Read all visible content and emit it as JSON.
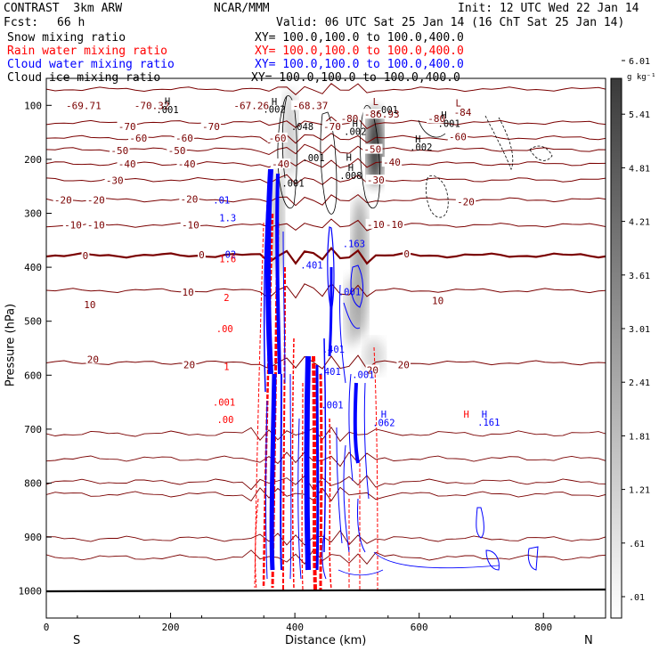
{
  "header": {
    "project": "CONTRAST  3km ARW",
    "center": "NCAR/MMM",
    "init": "Init: 12 UTC Wed 22 Jan 14",
    "fcst_label": "Fcst:",
    "fcst_value": "66 h",
    "valid": "Valid: 06 UTC Sat 25 Jan 14 (16 ChT Sat 25 Jan 14)"
  },
  "legend": [
    {
      "name": "Snow mixing ratio",
      "xy": "XY= 100.0,100.0 to 100.0,400.0",
      "color": "#000000"
    },
    {
      "name": "Rain water mixing ratio",
      "xy": "XY= 100.0,100.0 to 100.0,400.0",
      "color": "#ff0000"
    },
    {
      "name": "Cloud water mixing ratio",
      "xy": "XY= 100.0,100.0 to 100.0,400.0",
      "color": "#0000ff"
    },
    {
      "name": "Cloud ice mixing ratio",
      "xy": "XY= 100.0,100.0 to 100.0,400.0",
      "color": "#000000"
    }
  ],
  "colorbar": {
    "unit": "g kg⁻¹",
    "labels": [
      ".01",
      ".61",
      "1.21",
      "1.81",
      "2.41",
      "3.01",
      "3.61",
      "4.21",
      "4.81",
      "5.41",
      "6.01"
    ]
  },
  "chart_data": {
    "type": "contour cross-section",
    "ylabel": "Pressure (hPa)",
    "xlabel": "Distance (km)",
    "x_ticks": [
      0,
      200,
      400,
      600,
      800
    ],
    "x_tick_labels": [
      "0",
      "200",
      "400",
      "600",
      "800"
    ],
    "y_ticks": [
      100,
      200,
      300,
      400,
      500,
      600,
      700,
      800,
      900,
      1000
    ],
    "y_tick_labels": [
      "100",
      "200",
      "300",
      "400",
      "500",
      "600",
      "700",
      "800",
      "900",
      "1000"
    ],
    "xlim": [
      0,
      900
    ],
    "ylim": [
      1050,
      50
    ],
    "end_labels": {
      "left": "S",
      "right": "N"
    },
    "temperature_contours": [
      {
        "value": -80,
        "p": 70
      },
      {
        "value": -70,
        "p": 132
      },
      {
        "value": -60,
        "p": 160
      },
      {
        "value": -50,
        "p": 182
      },
      {
        "value": -40,
        "p": 208
      },
      {
        "value": -30,
        "p": 238
      },
      {
        "value": -20,
        "p": 275
      },
      {
        "value": -10,
        "p": 322
      },
      {
        "value": 0,
        "p": 378
      },
      {
        "value": 10,
        "p": 443
      },
      {
        "value": 20,
        "p": 577
      }
    ],
    "temperature_labels": [
      {
        "text": "-69.71",
        "x": 60,
        "p": 102
      },
      {
        "text": "-70.32",
        "x": 170,
        "p": 102
      },
      {
        "text": "-67.26",
        "x": 330,
        "p": 102
      },
      {
        "text": "-68.37",
        "x": 425,
        "p": 102
      },
      {
        "text": "-86.93",
        "x": 540,
        "p": 118
      },
      {
        "text": "-84",
        "x": 670,
        "p": 114
      },
      {
        "text": "-80",
        "x": 488,
        "p": 126
      },
      {
        "text": "-80",
        "x": 628,
        "p": 126
      },
      {
        "text": "-70",
        "x": 130,
        "p": 141
      },
      {
        "text": "-70",
        "x": 265,
        "p": 141
      },
      {
        "text": "-70",
        "x": 460,
        "p": 141
      },
      {
        "text": "-60",
        "x": 148,
        "p": 162
      },
      {
        "text": "-60",
        "x": 222,
        "p": 162
      },
      {
        "text": "-60",
        "x": 372,
        "p": 162
      },
      {
        "text": "-60",
        "x": 662,
        "p": 160
      },
      {
        "text": "-50",
        "x": 118,
        "p": 185
      },
      {
        "text": "-50",
        "x": 210,
        "p": 185
      },
      {
        "text": "-50",
        "x": 525,
        "p": 183
      },
      {
        "text": "-40",
        "x": 130,
        "p": 210
      },
      {
        "text": "-40",
        "x": 226,
        "p": 210
      },
      {
        "text": "-40",
        "x": 377,
        "p": 210
      },
      {
        "text": "-40",
        "x": 556,
        "p": 207
      },
      {
        "text": "-30",
        "x": 110,
        "p": 241
      },
      {
        "text": "-30",
        "x": 530,
        "p": 240
      },
      {
        "text": "-20",
        "x": 27,
        "p": 277
      },
      {
        "text": "-20",
        "x": 80,
        "p": 277
      },
      {
        "text": "-20",
        "x": 230,
        "p": 275
      },
      {
        "text": "-20",
        "x": 675,
        "p": 280
      },
      {
        "text": "-10",
        "x": 43,
        "p": 323
      },
      {
        "text": "-10",
        "x": 80,
        "p": 323
      },
      {
        "text": "-10",
        "x": 232,
        "p": 323
      },
      {
        "text": "-10",
        "x": 530,
        "p": 322
      },
      {
        "text": "-10",
        "x": 560,
        "p": 322
      },
      {
        "text": "0",
        "x": 63,
        "p": 380
      },
      {
        "text": "0",
        "x": 250,
        "p": 378
      },
      {
        "text": "0",
        "x": 580,
        "p": 377
      },
      {
        "text": "10",
        "x": 228,
        "p": 448
      },
      {
        "text": "10",
        "x": 70,
        "p": 471
      },
      {
        "text": "10",
        "x": 630,
        "p": 463
      },
      {
        "text": "20",
        "x": 75,
        "p": 572
      },
      {
        "text": "20",
        "x": 230,
        "p": 582
      },
      {
        "text": "20",
        "x": 525,
        "p": 592
      },
      {
        "text": "20",
        "x": 575,
        "p": 582
      }
    ],
    "extrema_marks": [
      {
        "text": "H",
        "x": 195,
        "p": 92,
        "color": "#000000"
      },
      {
        "text": ".001",
        "x": 195,
        "p": 108,
        "color": "#000000"
      },
      {
        "text": "H",
        "x": 367,
        "p": 93,
        "color": "#000000"
      },
      {
        "text": ".002",
        "x": 367,
        "p": 107,
        "color": "#000000"
      },
      {
        "text": "L",
        "x": 530,
        "p": 93,
        "color": "#7a0000"
      },
      {
        "text": ".001",
        "x": 548,
        "p": 108,
        "color": "#000000"
      },
      {
        "text": "L",
        "x": 663,
        "p": 95,
        "color": "#7a0000"
      },
      {
        "text": "H",
        "x": 640,
        "p": 118,
        "color": "#000000"
      },
      {
        "text": ".001",
        "x": 648,
        "p": 133,
        "color": "#000000"
      },
      {
        "text": "H",
        "x": 497,
        "p": 133,
        "color": "#000000"
      },
      {
        "text": ".002",
        "x": 497,
        "p": 148,
        "color": "#000000"
      },
      {
        "text": ".048",
        "x": 412,
        "p": 139,
        "color": "#000000"
      },
      {
        "text": "H",
        "x": 598,
        "p": 162,
        "color": "#000000"
      },
      {
        "text": ".002",
        "x": 603,
        "p": 177,
        "color": "#000000"
      },
      {
        "text": "H",
        "x": 487,
        "p": 196,
        "color": "#000000"
      },
      {
        "text": ".001",
        "x": 430,
        "p": 197,
        "color": "#000000"
      },
      {
        "text": "H",
        "x": 490,
        "p": 215,
        "color": "#000000"
      },
      {
        "text": ".008",
        "x": 490,
        "p": 230,
        "color": "#000000"
      },
      {
        "text": ".001",
        "x": 397,
        "p": 244,
        "color": "#000000"
      },
      {
        "text": ".01",
        "x": 282,
        "p": 275,
        "color": "#0000ff"
      },
      {
        "text": "1.3",
        "x": 292,
        "p": 308,
        "color": "#0000ff"
      },
      {
        "text": ".02",
        "x": 292,
        "p": 376,
        "color": "#0000ff"
      },
      {
        "text": "1.6",
        "x": 292,
        "p": 384,
        "color": "#ff0000"
      },
      {
        "text": ".163",
        "x": 495,
        "p": 356,
        "color": "#0000ff"
      },
      {
        "text": ".401",
        "x": 427,
        "p": 396,
        "color": "#0000ff"
      },
      {
        "text": "2",
        "x": 290,
        "p": 456,
        "color": "#ff0000"
      },
      {
        "text": ".001",
        "x": 488,
        "p": 445,
        "color": "#0000ff"
      },
      {
        "text": ".00",
        "x": 287,
        "p": 514,
        "color": "#ff0000"
      },
      {
        "text": ".401",
        "x": 462,
        "p": 552,
        "color": "#0000ff"
      },
      {
        "text": "1",
        "x": 290,
        "p": 584,
        "color": "#ff0000"
      },
      {
        "text": ".401",
        "x": 456,
        "p": 593,
        "color": "#0000ff"
      },
      {
        "text": ".001",
        "x": 510,
        "p": 599,
        "color": "#0000ff"
      },
      {
        "text": ".001",
        "x": 286,
        "p": 650,
        "color": "#ff0000"
      },
      {
        "text": ".001",
        "x": 460,
        "p": 655,
        "color": "#0000ff"
      },
      {
        "text": "H",
        "x": 543,
        "p": 672,
        "color": "#0000ff"
      },
      {
        "text": ".062",
        "x": 543,
        "p": 688,
        "color": "#0000ff"
      },
      {
        "text": ".00",
        "x": 288,
        "p": 682,
        "color": "#ff0000"
      },
      {
        "text": "H",
        "x": 676,
        "p": 672,
        "color": "#ff0000"
      },
      {
        "text": "H",
        "x": 705,
        "p": 672,
        "color": "#0000ff"
      },
      {
        "text": ".161",
        "x": 712,
        "p": 687,
        "color": "#0000ff"
      }
    ]
  }
}
